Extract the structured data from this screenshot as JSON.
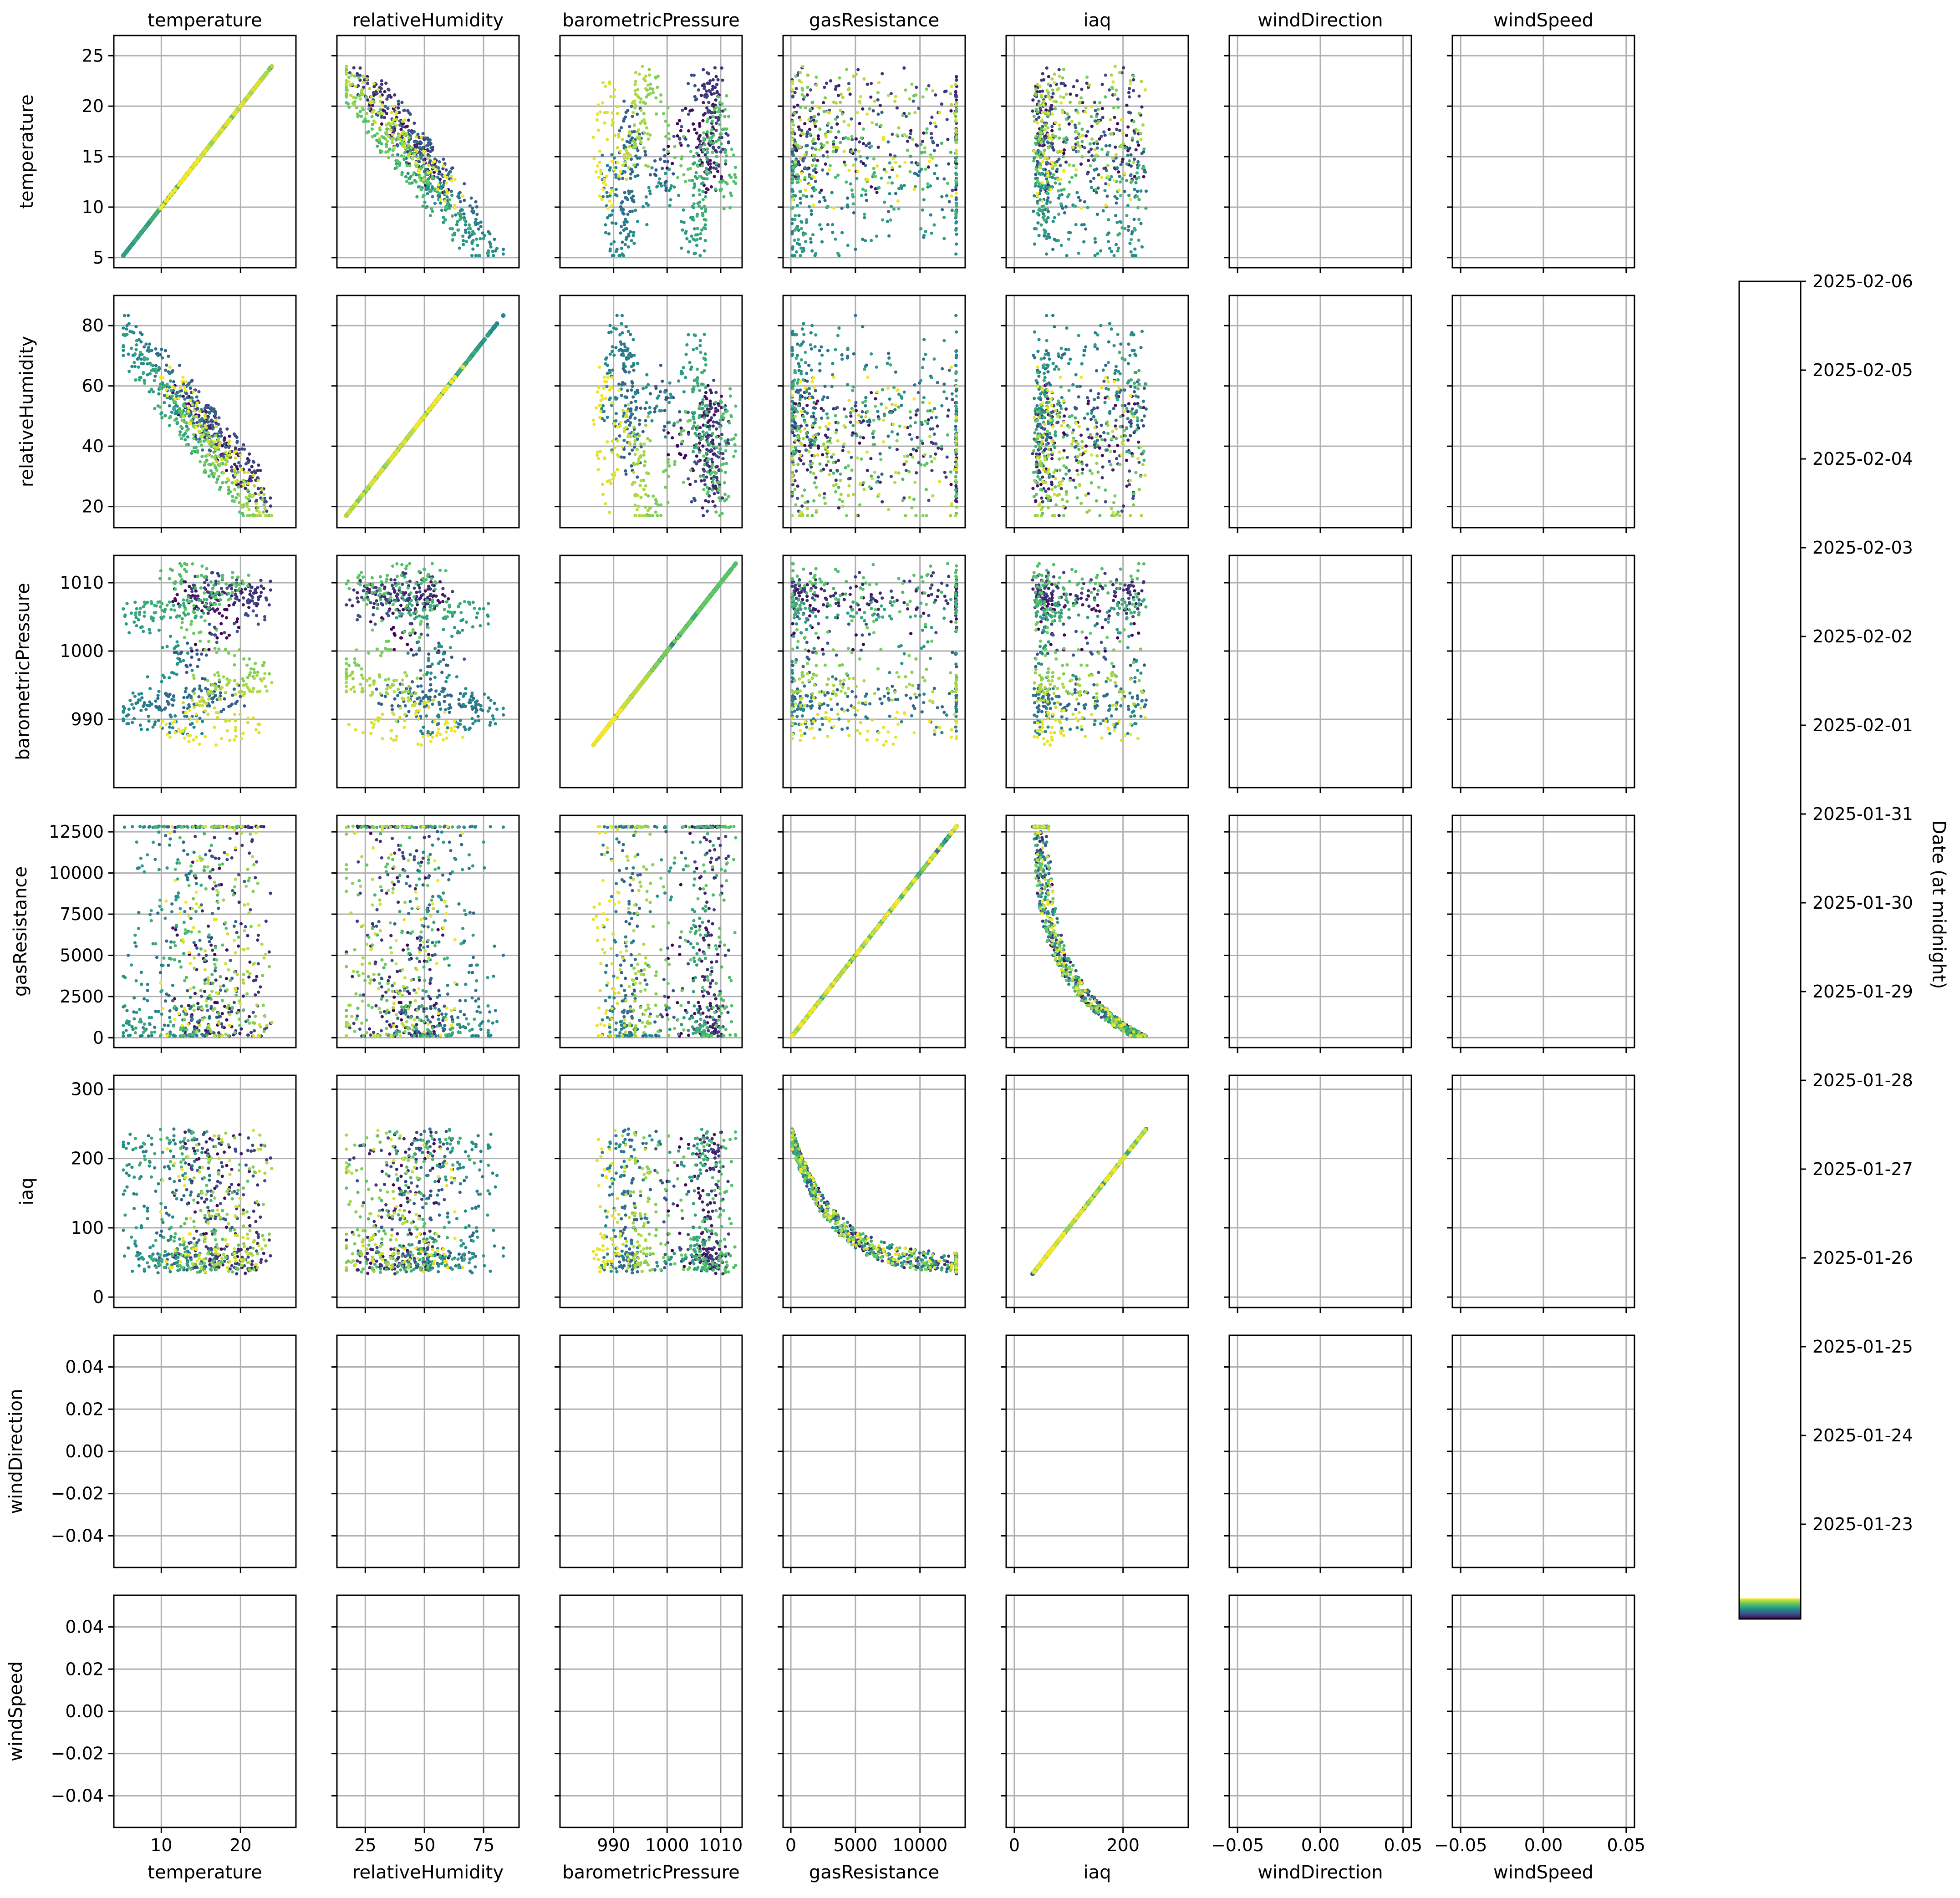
{
  "chart_data": {
    "type": "scatter",
    "variables": [
      "temperature",
      "relativeHumidity",
      "barometricPressure",
      "gasResistance",
      "iaq",
      "windDirection",
      "windSpeed"
    ],
    "ranges": {
      "temperature": [
        4.0,
        27.0
      ],
      "relativeHumidity": [
        13.0,
        90.0
      ],
      "barometricPressure": [
        980.0,
        1014.0
      ],
      "gasResistance": [
        -600,
        13500
      ],
      "iaq": [
        -15,
        320
      ],
      "windDirection": [
        -0.055,
        0.055
      ],
      "windSpeed": [
        -0.055,
        0.055
      ]
    },
    "ticks": {
      "temperature": [
        10,
        20
      ],
      "relativeHumidity": [
        25,
        50,
        75
      ],
      "barometricPressure": [
        990,
        1000,
        1010
      ],
      "gasResistance": [
        0,
        5000,
        10000
      ],
      "iaq": [
        0,
        200
      ],
      "windDirection": [
        -0.05,
        0.0,
        0.05
      ],
      "windSpeed": [
        -0.05,
        0.0,
        0.05
      ]
    },
    "y_ticks": {
      "temperature": [
        5,
        10,
        15,
        20,
        25
      ],
      "relativeHumidity": [
        20,
        40,
        60,
        80
      ],
      "barometricPressure": [
        990,
        1000,
        1010
      ],
      "gasResistance": [
        0,
        2500,
        5000,
        7500,
        10000,
        12500
      ],
      "iaq": [
        0,
        100,
        200,
        300
      ],
      "windDirection": [
        -0.04,
        -0.02,
        0.0,
        0.02,
        0.04
      ],
      "windSpeed": [
        -0.04,
        -0.02,
        0.0,
        0.02,
        0.04
      ]
    },
    "tick_labels": {
      "temperature": [
        "10",
        "20"
      ],
      "relativeHumidity": [
        "25",
        "50",
        "75"
      ],
      "barometricPressure": [
        "990",
        "1000",
        "1010"
      ],
      "gasResistance": [
        "0",
        "5000",
        "10000"
      ],
      "iaq": [
        "0",
        "200"
      ],
      "windDirection": [
        "−0.05",
        "0.00",
        "0.05"
      ],
      "windSpeed": [
        "−0.05",
        "0.00",
        "0.05"
      ]
    },
    "y_tick_labels": {
      "temperature": [
        "5",
        "10",
        "15",
        "20",
        "25"
      ],
      "relativeHumidity": [
        "20",
        "40",
        "60",
        "80"
      ],
      "barometricPressure": [
        "990",
        "1000",
        "1010"
      ],
      "gasResistance": [
        "0",
        "2500",
        "5000",
        "7500",
        "10000",
        "12500"
      ],
      "iaq": [
        "0",
        "100",
        "200",
        "300"
      ],
      "windDirection": [
        "−0.04",
        "−0.02",
        "0.00",
        "0.02",
        "0.04"
      ],
      "windSpeed": [
        "−0.04",
        "−0.02",
        "0.00",
        "0.02",
        "0.04"
      ]
    },
    "grid": true,
    "empty_variables": [
      "windDirection",
      "windSpeed"
    ],
    "colorbar": {
      "label": "Date (at midnight)",
      "ticks": [
        "2025-02-06",
        "2025-02-05",
        "2025-02-04",
        "2025-02-03",
        "2025-02-02",
        "2025-02-01",
        "2025-01-31",
        "2025-01-30",
        "2025-01-29",
        "2025-01-28",
        "2025-01-27",
        "2025-01-26",
        "2025-01-25",
        "2025-01-24",
        "2025-01-23"
      ],
      "colormap": [
        "#440154",
        "#3b528b",
        "#21918c",
        "#5ec962",
        "#fde725"
      ]
    }
  }
}
